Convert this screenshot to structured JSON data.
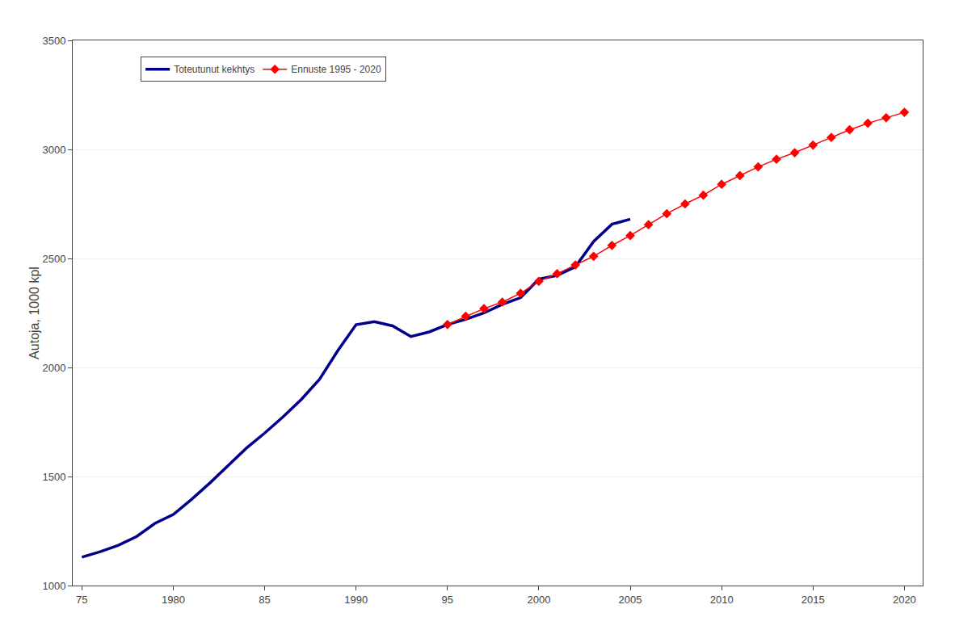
{
  "chart_data": {
    "type": "line",
    "ylabel": "Autoja, 1000 kpl",
    "xlim": [
      1974.5,
      2021
    ],
    "xticks": [
      {
        "value": 1975,
        "label": "75"
      },
      1980,
      {
        "value": 1985,
        "label": "85"
      },
      1990,
      {
        "value": 1995,
        "label": "95"
      },
      2000,
      2005,
      2010,
      2015,
      2020
    ],
    "ylim": [
      1000,
      3500
    ],
    "yticks": [
      1000,
      1500,
      2000,
      2500,
      3000,
      3500
    ],
    "grid": "y",
    "legend": "upper left",
    "series": [
      {
        "name": "Toteutunut kekhtys",
        "color": "#00008B",
        "line_style": "solid",
        "x": [
          1975,
          1976,
          1977,
          1978,
          1979,
          1980,
          1981,
          1982,
          1983,
          1984,
          1985,
          1986,
          1987,
          1988,
          1989,
          1990,
          1991,
          1992,
          1993,
          1994,
          1995,
          1996,
          1997,
          1998,
          1999,
          2000,
          2001,
          2002,
          2003,
          2004,
          2005
        ],
        "values": [
          1130,
          1155,
          1185,
          1225,
          1285,
          1326,
          1395,
          1470,
          1550,
          1630,
          1699,
          1773,
          1853,
          1946,
          2077,
          2196,
          2210,
          2191,
          2142,
          2163,
          2197,
          2221,
          2250,
          2289,
          2320,
          2405,
          2422,
          2462,
          2578,
          2657,
          2680
        ]
      },
      {
        "name": "Ennuste 1995 - 2020",
        "color": "#FF0000",
        "line_style": "solid",
        "marker": "diamond",
        "x": [
          1995,
          1996,
          1997,
          1998,
          1999,
          2000,
          2001,
          2002,
          2003,
          2004,
          2005,
          2006,
          2007,
          2008,
          2009,
          2010,
          2011,
          2012,
          2013,
          2014,
          2015,
          2016,
          2017,
          2018,
          2019,
          2020
        ],
        "values": [
          2197,
          2235,
          2270,
          2300,
          2340,
          2395,
          2430,
          2470,
          2510,
          2560,
          2605,
          2655,
          2705,
          2750,
          2790,
          2840,
          2880,
          2920,
          2955,
          2985,
          3020,
          3055,
          3090,
          3120,
          3145,
          3170
        ]
      }
    ]
  }
}
